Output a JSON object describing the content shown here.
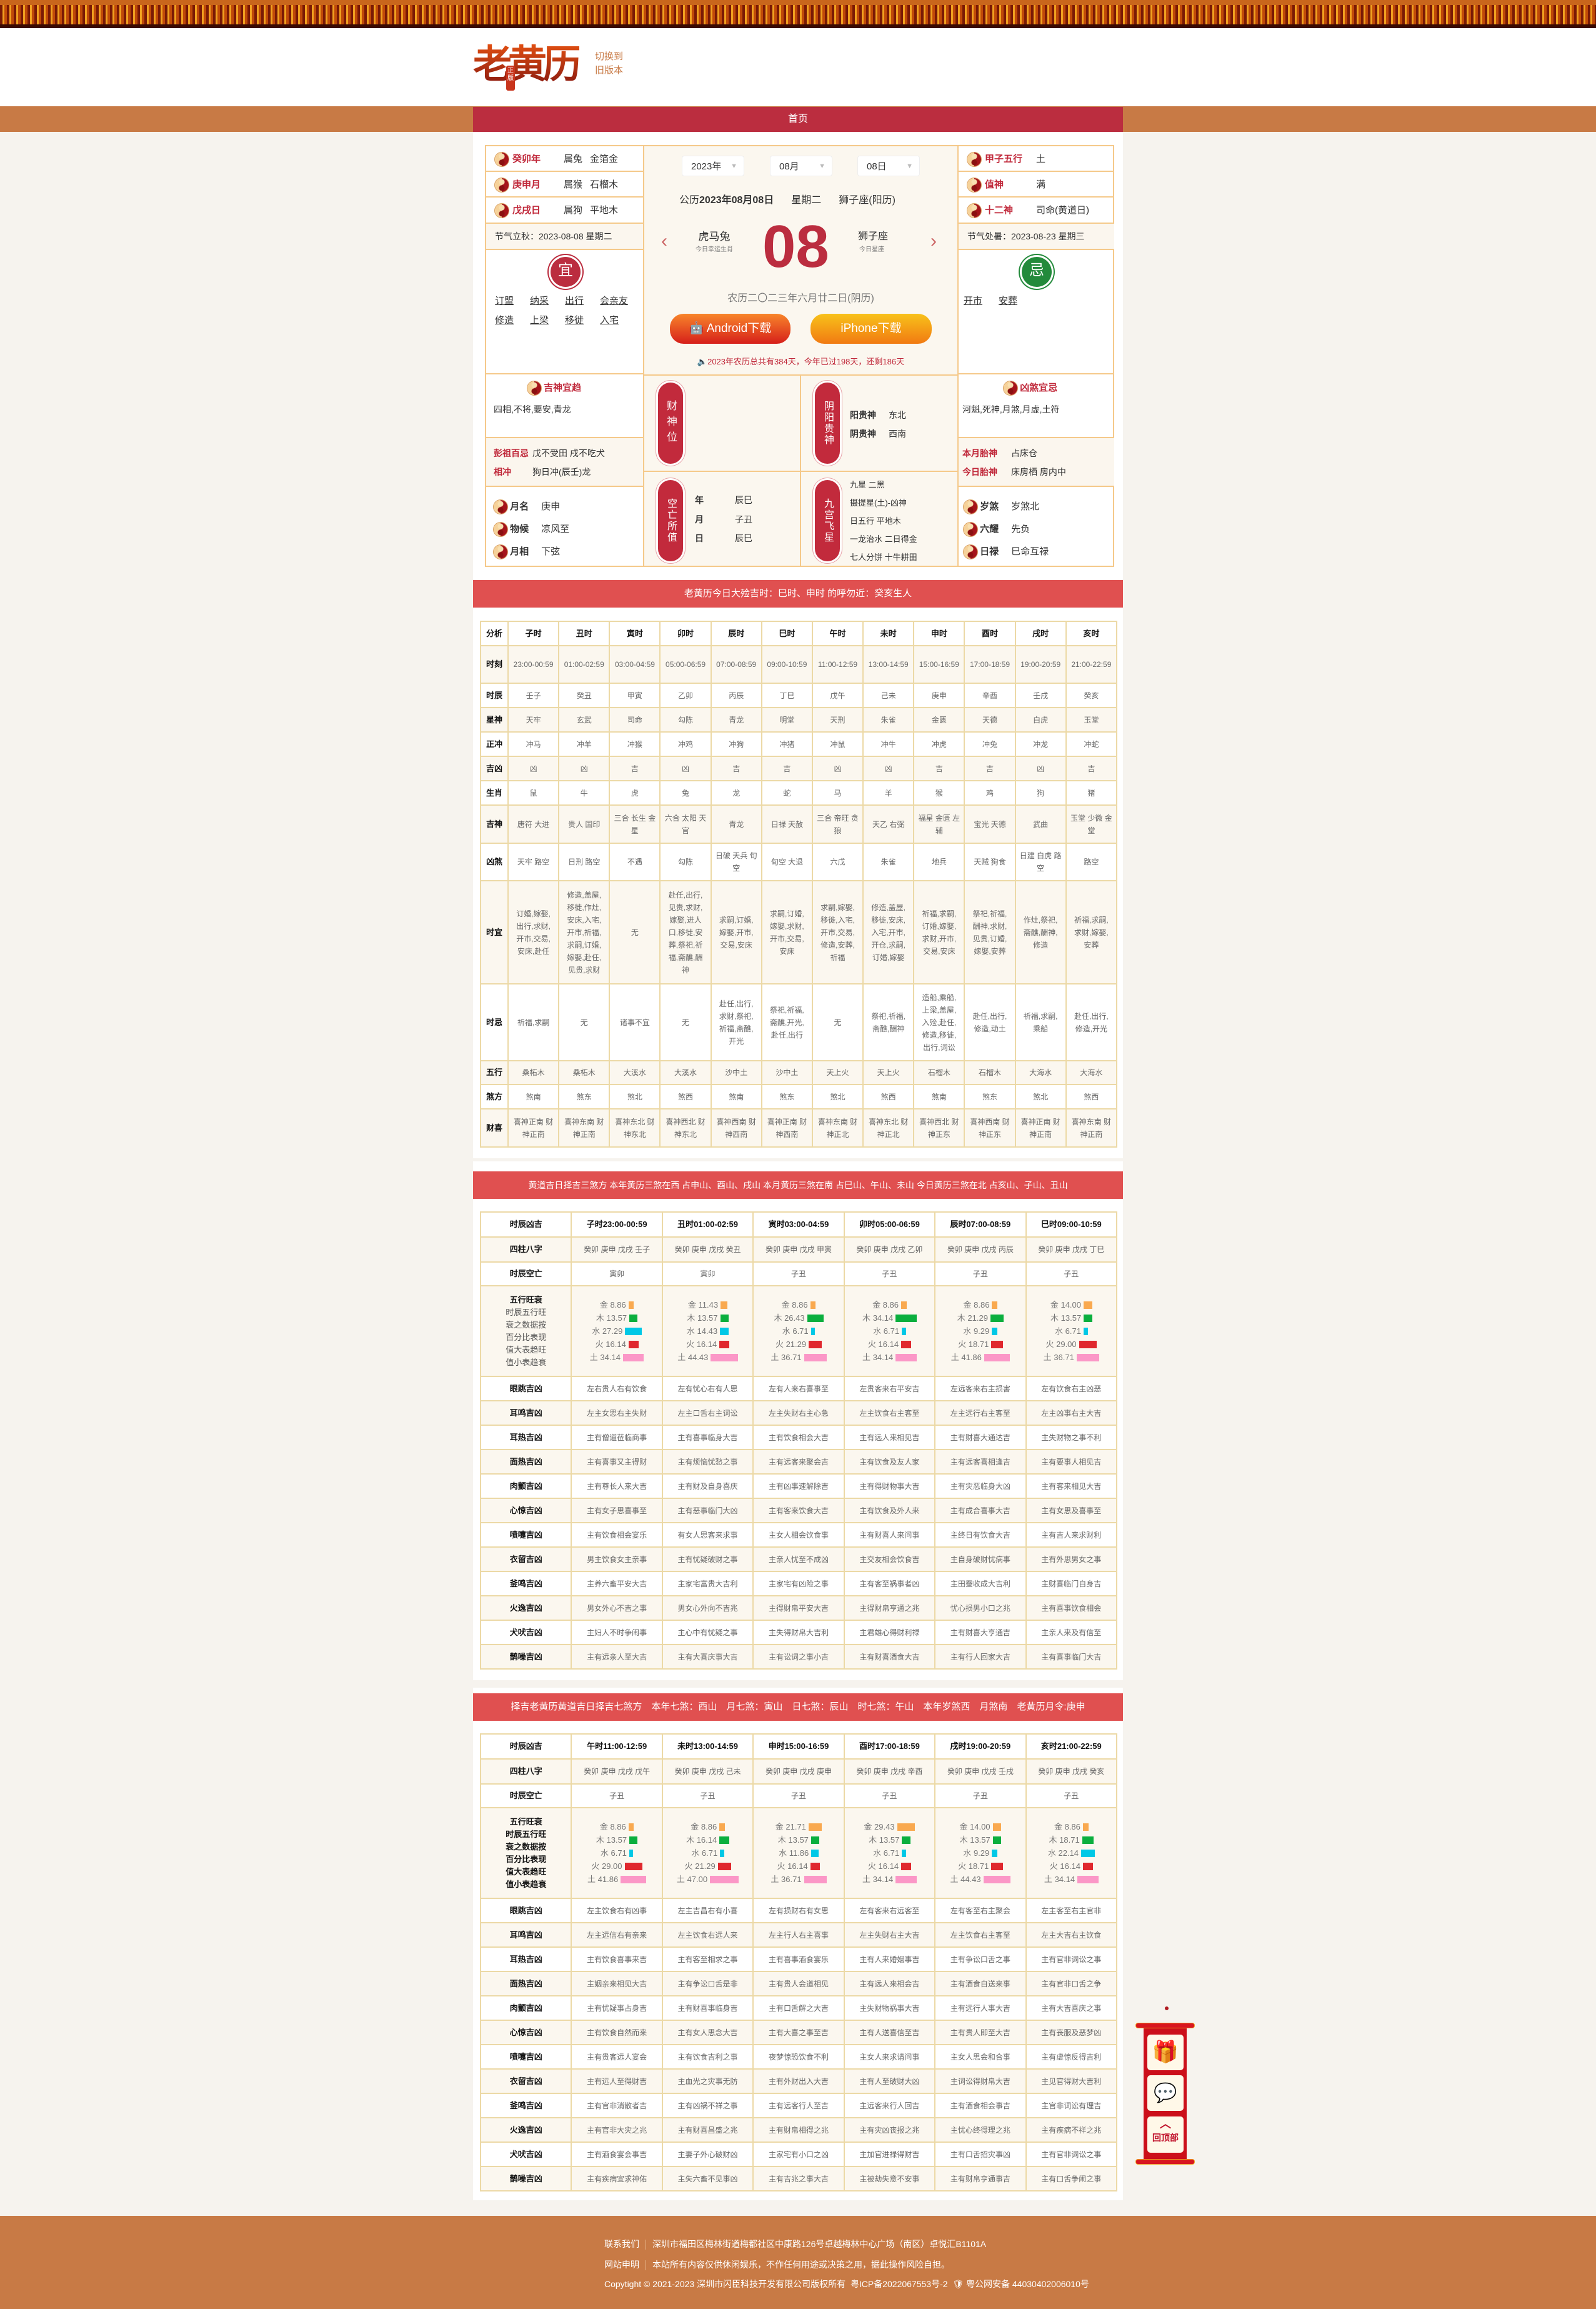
{
  "header": {
    "logo": "老黄历",
    "logo_badge": "正版",
    "switch_line1": "切换到",
    "switch_line2": "旧版本"
  },
  "nav": {
    "home": "首页"
  },
  "left": {
    "ganzhi": [
      {
        "label": "癸卯年",
        "v1": "属兔",
        "v2": "金箔金"
      },
      {
        "label": "庚申月",
        "v1": "属猴",
        "v2": "石榴木"
      },
      {
        "label": "戊戌日",
        "v1": "属狗",
        "v2": "平地木"
      }
    ],
    "jieqi": "节气立秋：2023-08-08 星期二",
    "yi_seal": "宜",
    "yi": [
      "订盟",
      "纳采",
      "出行",
      "会亲友",
      "修造",
      "上梁",
      "移徙",
      "入宅"
    ],
    "jishen_title": "吉神宜趋",
    "jishen": "四相,不将,要安,青龙",
    "pengzu_label": "彭祖百忌",
    "pengzu": "戊不受田 戌不吃犬",
    "xiangchong_label": "相冲",
    "xiangchong": "狗日冲(辰壬)龙",
    "misc": [
      {
        "label": "月名",
        "value": "庚申"
      },
      {
        "label": "物候",
        "value": "凉风至"
      },
      {
        "label": "月相",
        "value": "下弦"
      }
    ]
  },
  "center": {
    "year": "2023年",
    "month": "08月",
    "day": "08日",
    "date_prefix": "公历",
    "date": "2023年08月08日",
    "weekday": "星期二",
    "constellation": "狮子座(阳历)",
    "lucky_zodiac": "虎马兔",
    "lucky_zodiac_label": "今日幸运生肖",
    "big_day": "08",
    "star": "狮子座",
    "star_label": "今日星座",
    "lunar": "农历二〇二三年六月廿二日(阴历)",
    "android": "Android下载",
    "iphone": "iPhone下载",
    "notice": "2023年农历总共有384天，今年已过198天，还剩186天",
    "caishen_ribbon": "财神位",
    "guishen_ribbon": "阴阳贵神",
    "guishen": [
      {
        "label": "阳贵神",
        "value": "东北"
      },
      {
        "label": "阴贵神",
        "value": "西南"
      }
    ],
    "kongwang_ribbon": "空亡所值",
    "kongwang": [
      {
        "label": "年",
        "value": "辰巳"
      },
      {
        "label": "月",
        "value": "子丑"
      },
      {
        "label": "日",
        "value": "辰巳"
      }
    ],
    "jiugong_ribbon": "九宫飞星",
    "jiugong": [
      "九星 二黑",
      "摄提星(土)-凶神",
      "日五行 平地木",
      "一龙治水 二日得金",
      "七人分饼 十牛耕田"
    ]
  },
  "right": {
    "items": [
      {
        "label": "甲子五行",
        "value": "土"
      },
      {
        "label": "值神",
        "value": "满"
      },
      {
        "label": "十二神",
        "value": "司命(黄道日)"
      }
    ],
    "jieqi": "节气处暑：2023-08-23 星期三",
    "ji_seal": "忌",
    "ji": [
      "开市",
      "安葬"
    ],
    "xiongsha_title": "凶煞宜忌",
    "xiongsha": "河魁,死神,月煞,月虚,土符",
    "taishen": [
      {
        "label": "本月胎神",
        "value": "占床仓"
      },
      {
        "label": "今日胎神",
        "value": "床房栖 房内中"
      }
    ],
    "misc": [
      {
        "label": "岁煞",
        "value": "岁煞北"
      },
      {
        "label": "六耀",
        "value": "先负"
      },
      {
        "label": "日禄",
        "value": "巳命互禄"
      }
    ]
  },
  "table1": {
    "banner": "老黄历今日大殓吉时：巳时、申时 的呼勿近：癸亥生人",
    "rows": [
      {
        "label": "分析",
        "cells": [
          "子时",
          "丑时",
          "寅时",
          "卯时",
          "辰时",
          "巳时",
          "午时",
          "未时",
          "申时",
          "酉时",
          "戌时",
          "亥时"
        ]
      },
      {
        "label": "时刻",
        "cells": [
          "23:00-00:59",
          "01:00-02:59",
          "03:00-04:59",
          "05:00-06:59",
          "07:00-08:59",
          "09:00-10:59",
          "11:00-12:59",
          "13:00-14:59",
          "15:00-16:59",
          "17:00-18:59",
          "19:00-20:59",
          "21:00-22:59"
        ]
      },
      {
        "label": "时辰",
        "cells": [
          "壬子",
          "癸丑",
          "甲寅",
          "乙卯",
          "丙辰",
          "丁巳",
          "戊午",
          "己未",
          "庚申",
          "辛酉",
          "壬戌",
          "癸亥"
        ]
      },
      {
        "label": "星神",
        "cells": [
          "天牢",
          "玄武",
          "司命",
          "勾陈",
          "青龙",
          "明堂",
          "天刑",
          "朱雀",
          "金匮",
          "天德",
          "白虎",
          "玉堂"
        ]
      },
      {
        "label": "正冲",
        "cells": [
          "冲马",
          "冲羊",
          "冲猴",
          "冲鸡",
          "冲狗",
          "冲猪",
          "冲鼠",
          "冲牛",
          "冲虎",
          "冲兔",
          "冲龙",
          "冲蛇"
        ]
      },
      {
        "label": "吉凶",
        "cells": [
          "凶",
          "凶",
          "吉",
          "凶",
          "吉",
          "吉",
          "凶",
          "凶",
          "吉",
          "吉",
          "凶",
          "吉"
        ]
      },
      {
        "label": "生肖",
        "cells": [
          "鼠",
          "牛",
          "虎",
          "兔",
          "龙",
          "蛇",
          "马",
          "羊",
          "猴",
          "鸡",
          "狗",
          "猪"
        ]
      },
      {
        "label": "吉神",
        "cells": [
          "唐符 大进",
          "贵人 国印",
          "三合 长生 金星",
          "六合 太阳 天官",
          "青龙",
          "日禄 天赦",
          "三合 帝旺 贪狼",
          "天乙 右弼",
          "福星 金匮 左辅",
          "宝光 天德",
          "武曲",
          "玉堂 少微 金堂"
        ]
      },
      {
        "label": "凶煞",
        "cells": [
          "天牢 路空",
          "日刑 路空",
          "不遇",
          "勾陈",
          "日破 天兵 旬空",
          "旬空 大退",
          "六戊",
          "朱雀",
          "地兵",
          "天贼 狗食",
          "日建 白虎 路空",
          "路空"
        ]
      },
      {
        "label": "时宜",
        "cells": [
          "订婚,嫁娶,出行,求财,开市,交易,安床,赴任",
          "修造,盖屋,移徙,作灶,安床,入宅,开市,祈福,求嗣,订婚,嫁娶,赴任,见贵,求财",
          "无",
          "赴任,出行,见贵,求财,嫁娶,进人口,移徙,安葬,祭祀,祈福,斋醮,酬神",
          "求嗣,订婚,嫁娶,开市,交易,安床",
          "求嗣,订婚,嫁娶,求财,开市,交易,安床",
          "求嗣,嫁娶,移徙,入宅,开市,交易,修造,安葬,祈福",
          "修造,盖屋,移徙,安床,入宅,开市,开仓,求嗣,订婚,嫁娶",
          "祈福,求嗣,订婚,嫁娶,求财,开市,交易,安床",
          "祭祀,祈福,酬神,求财,见贵,订婚,嫁娶,安葬",
          "作灶,祭祀,斋醮,酬神,修造",
          "祈福,求嗣,求财,嫁娶,安葬"
        ]
      },
      {
        "label": "时忌",
        "cells": [
          "祈福,求嗣",
          "无",
          "诸事不宜",
          "无",
          "赴任,出行,求财,祭祀,祈福,斋醮,开光",
          "祭祀,祈福,斋醮,开光,赴任,出行",
          "无",
          "祭祀,祈福,斋醮,酬神",
          "造船,乘船,上梁,盖屋,入殓,赴任,修造,移徙,出行,词讼",
          "赴任,出行,修造,动土",
          "祈福,求嗣,乘船",
          "赴任,出行,修造,开光"
        ]
      },
      {
        "label": "五行",
        "cells": [
          "桑柘木",
          "桑柘木",
          "大溪水",
          "大溪水",
          "沙中土",
          "沙中土",
          "天上火",
          "天上火",
          "石榴木",
          "石榴木",
          "大海水",
          "大海水"
        ]
      },
      {
        "label": "煞方",
        "cells": [
          "煞南",
          "煞东",
          "煞北",
          "煞西",
          "煞南",
          "煞东",
          "煞北",
          "煞西",
          "煞南",
          "煞东",
          "煞北",
          "煞西"
        ]
      },
      {
        "label": "财喜",
        "cells": [
          "喜神正南 财神正南",
          "喜神东南 财神正南",
          "喜神东北 财神东北",
          "喜神西北 财神东北",
          "喜神西南 财神西南",
          "喜神正南 财神西南",
          "喜神东南 财神正北",
          "喜神东北 财神正北",
          "喜神西北 财神正东",
          "喜神西南 财神正东",
          "喜神正南 财神正南",
          "喜神东南 财神正南"
        ]
      }
    ]
  },
  "wuxing_colors": {
    "金": "#f9a94f",
    "木": "#0aaf3e",
    "水": "#00c8e6",
    "火": "#e0282e",
    "土": "#fb97c7"
  },
  "table2": {
    "banner": "黄道吉日择吉三煞方 本年黄历三煞在西 占申山、酉山、戌山 本月黄历三煞在南 占巳山、午山、未山 今日黄历三煞在北 占亥山、子山、丑山",
    "rows": [
      {
        "label": "时辰凶吉",
        "cells": [
          "子时23:00-00:59",
          "丑时01:00-02:59",
          "寅时03:00-04:59",
          "卯时05:00-06:59",
          "辰时07:00-08:59",
          "巳时09:00-10:59"
        ]
      },
      {
        "label": "四柱八字",
        "cells": [
          "癸卯 庚申 戊戌 壬子",
          "癸卯 庚申 戊戌 癸丑",
          "癸卯 庚申 戊戌 甲寅",
          "癸卯 庚申 戊戌 乙卯",
          "癸卯 庚申 戊戌 丙辰",
          "癸卯 庚申 戊戌 丁巳"
        ]
      },
      {
        "label": "时辰空亡",
        "cells": [
          "寅卯",
          "寅卯",
          "子丑",
          "子丑",
          "子丑",
          "子丑"
        ]
      }
    ],
    "wuxing": {
      "title": "五行旺衰",
      "desc": "时辰五行旺衰之数据按百分比表现值大表趋旺值小表趋衰",
      "elements": [
        "金",
        "木",
        "水",
        "火",
        "土"
      ],
      "values": [
        [
          "8.86",
          "13.57",
          "27.29",
          "16.14",
          "34.14"
        ],
        [
          "11.43",
          "13.57",
          "14.43",
          "16.14",
          "44.43"
        ],
        [
          "8.86",
          "26.43",
          "6.71",
          "21.29",
          "36.71"
        ],
        [
          "8.86",
          "34.14",
          "6.71",
          "16.14",
          "34.14"
        ],
        [
          "8.86",
          "21.29",
          "9.29",
          "18.71",
          "41.86"
        ],
        [
          "14.00",
          "13.57",
          "6.71",
          "29.00",
          "36.71"
        ]
      ]
    },
    "omens": [
      {
        "label": "眼跳吉凶",
        "cells": [
          "左右贵人右有饮食",
          "左有忧心右有人思",
          "左有人来右喜事至",
          "左贵客来右平安吉",
          "左远客来右主损害",
          "左有饮食右主凶恶"
        ]
      },
      {
        "label": "耳鸣吉凶",
        "cells": [
          "左主女思右主失财",
          "左主口舌右主词讼",
          "左主失财右主心急",
          "左主饮食右主客至",
          "左主远行右主客至",
          "左主凶事右主大吉"
        ]
      },
      {
        "label": "耳热吉凶",
        "cells": [
          "主有僧道莅临商事",
          "主有喜事临身大吉",
          "主有饮食相会大吉",
          "主有远人来相见吉",
          "主有财喜大通达吉",
          "主失财物之事不利"
        ]
      },
      {
        "label": "面热吉凶",
        "cells": [
          "主有喜事又主得财",
          "主有烦恼忧愁之事",
          "主有远客来聚会吉",
          "主有饮食及友人家",
          "主有远客喜相逢吉",
          "主有要事人相见吉"
        ]
      },
      {
        "label": "肉颤吉凶",
        "cells": [
          "主有尊长人来大吉",
          "主有财及自身喜庆",
          "主有凶事速解除吉",
          "主有得财物事大吉",
          "主有灾恶临身大凶",
          "主有客来相见大吉"
        ]
      },
      {
        "label": "心惊吉凶",
        "cells": [
          "主有女子思喜事至",
          "主有恶事临门大凶",
          "主有客来饮食大吉",
          "主有饮食及外人来",
          "主有成合喜事大吉",
          "主有女思及喜事至"
        ]
      },
      {
        "label": "喷嚏吉凶",
        "cells": [
          "主有饮食相会宴乐",
          "有女人思客来求事",
          "主女人相会饮食事",
          "主有财喜人来问事",
          "主终日有饮食大吉",
          "主有吉人来求财利"
        ]
      },
      {
        "label": "衣留吉凶",
        "cells": [
          "男主饮食女主亲事",
          "主有忧疑破财之事",
          "主亲人忧至不成凶",
          "主交友相会饮食吉",
          "主自身破财忧病事",
          "主有外思男女之事"
        ]
      },
      {
        "label": "釜鸣吉凶",
        "cells": [
          "主养六畜平安大吉",
          "主家宅富贵大吉利",
          "主家宅有凶险之事",
          "主有客至祸事者凶",
          "主田蚕收成大吉利",
          "主财喜临门自身吉"
        ]
      },
      {
        "label": "火逸吉凶",
        "cells": [
          "男女外心不吉之事",
          "男女心外向不吉兆",
          "主得财帛平安大吉",
          "主得财帛亨通之兆",
          "忧心损男小口之兆",
          "主有喜事饮食相会"
        ]
      },
      {
        "label": "犬吠吉凶",
        "cells": [
          "主妇人不时争闹事",
          "主心中有忧疑之事",
          "主失得财帛大吉利",
          "主君雄心得财利禄",
          "主有财喜大亨通吉",
          "主亲人来及有信至"
        ]
      },
      {
        "label": "鹊噪吉凶",
        "cells": [
          "主有远亲人至大吉",
          "主有大喜庆事大吉",
          "主有讼词之事小吉",
          "主有财喜酒食大吉",
          "主有行人回家大吉",
          "主有喜事临门大吉"
        ]
      }
    ]
  },
  "table3": {
    "banner": "择吉老黄历黄道吉日择吉七煞方　本年七煞：酉山　月七煞：寅山　日七煞：辰山　时七煞：午山　本年岁煞西　月煞南　老黄历月令:庚申",
    "rows": [
      {
        "label": "时辰凶吉",
        "cells": [
          "午时11:00-12:59",
          "未时13:00-14:59",
          "申时15:00-16:59",
          "酉时17:00-18:59",
          "戌时19:00-20:59",
          "亥时21:00-22:59"
        ]
      },
      {
        "label": "四柱八字",
        "cells": [
          "癸卯 庚申 戊戌 戊午",
          "癸卯 庚申 戊戌 己未",
          "癸卯 庚申 戊戌 庚申",
          "癸卯 庚申 戊戌 辛酉",
          "癸卯 庚申 戊戌 壬戌",
          "癸卯 庚申 戊戌 癸亥"
        ]
      },
      {
        "label": "时辰空亡",
        "cells": [
          "子丑",
          "子丑",
          "子丑",
          "子丑",
          "子丑",
          "子丑"
        ]
      }
    ],
    "wuxing": {
      "title": "五行旺衰",
      "desc": "时辰五行旺衰之数据按百分比表现值大表趋旺值小表趋衰",
      "elements": [
        "金",
        "木",
        "水",
        "火",
        "土"
      ],
      "values": [
        [
          "8.86",
          "13.57",
          "6.71",
          "29.00",
          "41.86"
        ],
        [
          "8.86",
          "16.14",
          "6.71",
          "21.29",
          "47.00"
        ],
        [
          "21.71",
          "13.57",
          "11.86",
          "16.14",
          "36.71"
        ],
        [
          "29.43",
          "13.57",
          "6.71",
          "16.14",
          "34.14"
        ],
        [
          "14.00",
          "13.57",
          "9.29",
          "18.71",
          "44.43"
        ],
        [
          "8.86",
          "18.71",
          "22.14",
          "16.14",
          "34.14"
        ]
      ]
    },
    "omens": [
      {
        "label": "眼跳吉凶",
        "cells": [
          "左主饮食右有凶事",
          "左主吉昌右有小喜",
          "左有损财右有女思",
          "左有客来右远客至",
          "左有客至右主聚会",
          "左主客至右主官非"
        ]
      },
      {
        "label": "耳鸣吉凶",
        "cells": [
          "左主远信右有亲来",
          "左主饮食右远人来",
          "左主行人右主喜事",
          "左主失财右主大吉",
          "左主饮食右主客至",
          "左主大吉右主饮食"
        ]
      },
      {
        "label": "耳热吉凶",
        "cells": [
          "主有饮食喜事来吉",
          "主有客至相求之事",
          "主有喜事酒食宴乐",
          "主有人来婚姻事吉",
          "主有争讼口舌之事",
          "主有官非词讼之事"
        ]
      },
      {
        "label": "面热吉凶",
        "cells": [
          "主姻亲来相见大吉",
          "主有争讼口舌是非",
          "主有贵人会道相见",
          "主有远人来相会吉",
          "主有酒食自送来事",
          "主有官非口舌之争"
        ]
      },
      {
        "label": "肉颤吉凶",
        "cells": [
          "主有忧疑事占身吉",
          "主有财喜事临身吉",
          "主有口舌解之大吉",
          "主失财物祸事大吉",
          "主有远行人事大吉",
          "主有大吉喜庆之事"
        ]
      },
      {
        "label": "心惊吉凶",
        "cells": [
          "主有饮食自然而来",
          "主有女人思念大吉",
          "主有大喜之事至吉",
          "主有人送喜信至吉",
          "主有贵人即至大吉",
          "主有丧服及恶梦凶"
        ]
      },
      {
        "label": "喷嚏吉凶",
        "cells": [
          "主有贵客远人宴会",
          "主有饮食吉利之事",
          "夜梦惊恐饮食不利",
          "主女人来求请问事",
          "主女人思会和合事",
          "主有虚惊反得吉利"
        ]
      },
      {
        "label": "衣留吉凶",
        "cells": [
          "主有远人至得财吉",
          "主血光之灾事无防",
          "主有外财出入大吉",
          "主有人至破财大凶",
          "主词讼得财帛大吉",
          "主见官得财大吉利"
        ]
      },
      {
        "label": "釜鸣吉凶",
        "cells": [
          "主有官非消散者吉",
          "主有凶祸不祥之事",
          "主有远客行人至吉",
          "主远客来行人回吉",
          "主有酒食相会事吉",
          "主官非词讼有理吉"
        ]
      },
      {
        "label": "火逸吉凶",
        "cells": [
          "主有官非大灾之兆",
          "主有财喜昌盛之兆",
          "主有财帛相得之兆",
          "主有灾凶丧报之兆",
          "主忧心终得理之兆",
          "主有疾病不祥之兆"
        ]
      },
      {
        "label": "犬吠吉凶",
        "cells": [
          "主有酒食宴会事吉",
          "主妻子外心破财凶",
          "主家宅有小口之凶",
          "主加官进禄得财吉",
          "主有口舌招灾事凶",
          "主有官非词讼之事"
        ]
      },
      {
        "label": "鹊噪吉凶",
        "cells": [
          "主有疾病宜求神佑",
          "主失六畜不见事凶",
          "主有吉兆之事大吉",
          "主被劫失意不安事",
          "主有财帛亨通事吉",
          "主有口舌争闹之事"
        ]
      }
    ]
  },
  "float": {
    "top_label": "回顶部",
    "icons": [
      "treasure-chest-icon",
      "wechat-icon",
      "arrow-up-icon"
    ]
  },
  "footer": {
    "contact_label": "联系我们",
    "contact": "深圳市福田区梅林街道梅都社区中康路126号卓越梅林中心广场（南区）卓悦汇B1101A",
    "statement_label": "网站申明",
    "statement": "本站所有内容仅供休闲娱乐，不作任何用途或决策之用，据此操作风险自担。",
    "copyright": "Copytight © 2021-2023 深圳市闪臣科技开发有限公司版权所有",
    "icp": "粤ICP备2022067553号-2",
    "police": "粤公网安备 44030402006010号"
  }
}
